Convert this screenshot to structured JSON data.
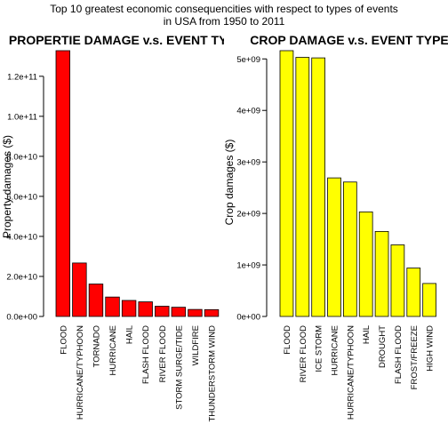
{
  "figure": {
    "title_line1": "Top 10 greatest economic consequencities with respect to types of events",
    "title_line2": "in USA from 1950 to 2011"
  },
  "chart_data": [
    {
      "type": "bar",
      "title": "PROPERTIE DAMAGE v.s. EVENT TYPE",
      "xlabel": "",
      "ylabel": "Property damages ($)",
      "color": "#ff0000",
      "categories": [
        "FLOOD",
        "HURRICANE/TYPHOON",
        "TORNADO",
        "HURRICANE",
        "HAIL",
        "FLASH FLOOD",
        "RIVER FLOOD",
        "STORM SURGE/TIDE",
        "WILDFIRE",
        "THUNDERSTORM WIND"
      ],
      "values": [
        132800000000,
        26700000000,
        16200000000,
        9700000000,
        8000000000,
        7300000000,
        5100000000,
        4600000000,
        3500000000,
        3400000000
      ],
      "ylim": [
        0,
        132800000000
      ],
      "yticks": [
        0,
        20000000000,
        40000000000,
        60000000000,
        80000000000,
        100000000000,
        120000000000
      ],
      "yticklabels": [
        "0.0e+00",
        "2.0e+10",
        "4.0e+10",
        "6.0e+10",
        "8.0e+10",
        "1.0e+11",
        "1.2e+11"
      ]
    },
    {
      "type": "bar",
      "title": "CROP DAMAGE v.s. EVENT TYPE",
      "xlabel": "",
      "ylabel": "Crop damages ($)",
      "color": "#ffff00",
      "categories": [
        "FLOOD",
        "RIVER FLOOD",
        "ICE STORM",
        "HURRICANE",
        "HURRICANE/TYPHOON",
        "HAIL",
        "DROUGHT",
        "FLASH FLOOD",
        "FROST/FREEZE",
        "HIGH WIND"
      ],
      "values": [
        5160000000,
        5030000000,
        5020000000,
        2690000000,
        2610000000,
        2030000000,
        1650000000,
        1390000000,
        940000000,
        640000000
      ],
      "ylim": [
        0,
        5160000000
      ],
      "yticks": [
        0,
        1000000000,
        2000000000,
        3000000000,
        4000000000,
        5000000000
      ],
      "yticklabels": [
        "0e+00",
        "1e+09",
        "2e+09",
        "3e+09",
        "4e+09",
        "5e+09"
      ]
    }
  ]
}
